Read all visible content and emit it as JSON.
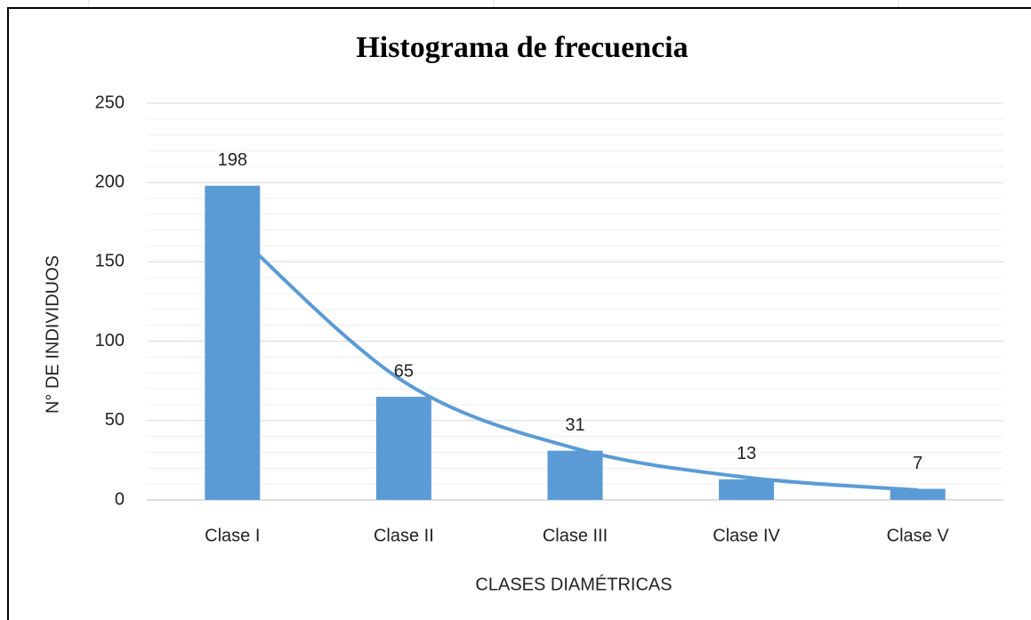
{
  "chart_data": {
    "type": "bar",
    "title": "Histograma de frecuencia",
    "x_label": "CLASES DIAMÉTRICAS",
    "y_label": "N° DE INDIVIDUOS",
    "categories": [
      "Clase I",
      "Clase II",
      "Clase III",
      "Clase IV",
      "Clase V"
    ],
    "values": [
      198,
      65,
      31,
      13,
      7
    ],
    "color": "#5b9bd5",
    "trendline": {
      "type": "exponential",
      "color": "#5b9bd5",
      "values": [
        170,
        74.5,
        32.5,
        14.2,
        6.2
      ]
    },
    "ylim": [
      0,
      250
    ],
    "yticks": [
      0,
      50,
      100,
      150,
      200,
      250
    ],
    "y_minor_ticks": [
      10,
      20,
      30,
      40,
      60,
      70,
      80,
      90,
      110,
      120,
      130,
      140,
      160,
      170,
      180,
      190,
      210,
      220,
      230,
      240
    ],
    "grid": true,
    "data_labels": true
  }
}
